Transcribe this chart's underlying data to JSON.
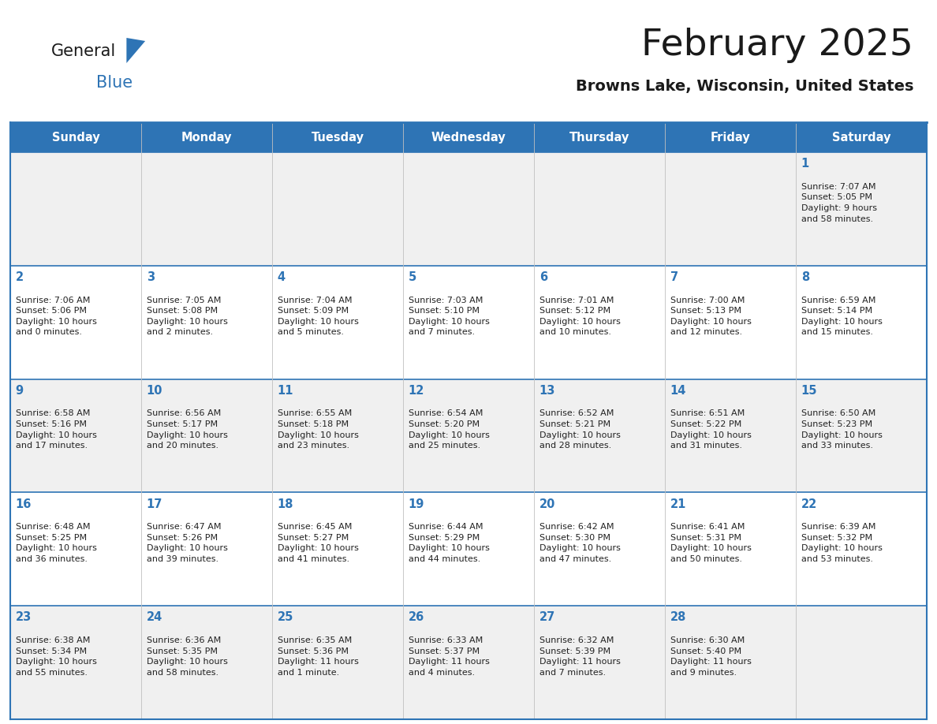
{
  "title": "February 2025",
  "subtitle": "Browns Lake, Wisconsin, United States",
  "header_bg": "#2E74B5",
  "header_text_color": "#FFFFFF",
  "day_names": [
    "Sunday",
    "Monday",
    "Tuesday",
    "Wednesday",
    "Thursday",
    "Friday",
    "Saturday"
  ],
  "odd_row_bg": "#F0F0F0",
  "even_row_bg": "#FFFFFF",
  "cell_text_color": "#222222",
  "day_num_color": "#2E74B5",
  "separator_color": "#2E74B5",
  "logo_color1": "#1a1a1a",
  "logo_color2": "#2E74B5",
  "calendar_data": [
    [
      {
        "day": null,
        "info": ""
      },
      {
        "day": null,
        "info": ""
      },
      {
        "day": null,
        "info": ""
      },
      {
        "day": null,
        "info": ""
      },
      {
        "day": null,
        "info": ""
      },
      {
        "day": null,
        "info": ""
      },
      {
        "day": 1,
        "info": "Sunrise: 7:07 AM\nSunset: 5:05 PM\nDaylight: 9 hours\nand 58 minutes."
      }
    ],
    [
      {
        "day": 2,
        "info": "Sunrise: 7:06 AM\nSunset: 5:06 PM\nDaylight: 10 hours\nand 0 minutes."
      },
      {
        "day": 3,
        "info": "Sunrise: 7:05 AM\nSunset: 5:08 PM\nDaylight: 10 hours\nand 2 minutes."
      },
      {
        "day": 4,
        "info": "Sunrise: 7:04 AM\nSunset: 5:09 PM\nDaylight: 10 hours\nand 5 minutes."
      },
      {
        "day": 5,
        "info": "Sunrise: 7:03 AM\nSunset: 5:10 PM\nDaylight: 10 hours\nand 7 minutes."
      },
      {
        "day": 6,
        "info": "Sunrise: 7:01 AM\nSunset: 5:12 PM\nDaylight: 10 hours\nand 10 minutes."
      },
      {
        "day": 7,
        "info": "Sunrise: 7:00 AM\nSunset: 5:13 PM\nDaylight: 10 hours\nand 12 minutes."
      },
      {
        "day": 8,
        "info": "Sunrise: 6:59 AM\nSunset: 5:14 PM\nDaylight: 10 hours\nand 15 minutes."
      }
    ],
    [
      {
        "day": 9,
        "info": "Sunrise: 6:58 AM\nSunset: 5:16 PM\nDaylight: 10 hours\nand 17 minutes."
      },
      {
        "day": 10,
        "info": "Sunrise: 6:56 AM\nSunset: 5:17 PM\nDaylight: 10 hours\nand 20 minutes."
      },
      {
        "day": 11,
        "info": "Sunrise: 6:55 AM\nSunset: 5:18 PM\nDaylight: 10 hours\nand 23 minutes."
      },
      {
        "day": 12,
        "info": "Sunrise: 6:54 AM\nSunset: 5:20 PM\nDaylight: 10 hours\nand 25 minutes."
      },
      {
        "day": 13,
        "info": "Sunrise: 6:52 AM\nSunset: 5:21 PM\nDaylight: 10 hours\nand 28 minutes."
      },
      {
        "day": 14,
        "info": "Sunrise: 6:51 AM\nSunset: 5:22 PM\nDaylight: 10 hours\nand 31 minutes."
      },
      {
        "day": 15,
        "info": "Sunrise: 6:50 AM\nSunset: 5:23 PM\nDaylight: 10 hours\nand 33 minutes."
      }
    ],
    [
      {
        "day": 16,
        "info": "Sunrise: 6:48 AM\nSunset: 5:25 PM\nDaylight: 10 hours\nand 36 minutes."
      },
      {
        "day": 17,
        "info": "Sunrise: 6:47 AM\nSunset: 5:26 PM\nDaylight: 10 hours\nand 39 minutes."
      },
      {
        "day": 18,
        "info": "Sunrise: 6:45 AM\nSunset: 5:27 PM\nDaylight: 10 hours\nand 41 minutes."
      },
      {
        "day": 19,
        "info": "Sunrise: 6:44 AM\nSunset: 5:29 PM\nDaylight: 10 hours\nand 44 minutes."
      },
      {
        "day": 20,
        "info": "Sunrise: 6:42 AM\nSunset: 5:30 PM\nDaylight: 10 hours\nand 47 minutes."
      },
      {
        "day": 21,
        "info": "Sunrise: 6:41 AM\nSunset: 5:31 PM\nDaylight: 10 hours\nand 50 minutes."
      },
      {
        "day": 22,
        "info": "Sunrise: 6:39 AM\nSunset: 5:32 PM\nDaylight: 10 hours\nand 53 minutes."
      }
    ],
    [
      {
        "day": 23,
        "info": "Sunrise: 6:38 AM\nSunset: 5:34 PM\nDaylight: 10 hours\nand 55 minutes."
      },
      {
        "day": 24,
        "info": "Sunrise: 6:36 AM\nSunset: 5:35 PM\nDaylight: 10 hours\nand 58 minutes."
      },
      {
        "day": 25,
        "info": "Sunrise: 6:35 AM\nSunset: 5:36 PM\nDaylight: 11 hours\nand 1 minute."
      },
      {
        "day": 26,
        "info": "Sunrise: 6:33 AM\nSunset: 5:37 PM\nDaylight: 11 hours\nand 4 minutes."
      },
      {
        "day": 27,
        "info": "Sunrise: 6:32 AM\nSunset: 5:39 PM\nDaylight: 11 hours\nand 7 minutes."
      },
      {
        "day": 28,
        "info": "Sunrise: 6:30 AM\nSunset: 5:40 PM\nDaylight: 11 hours\nand 9 minutes."
      },
      {
        "day": null,
        "info": ""
      }
    ]
  ]
}
